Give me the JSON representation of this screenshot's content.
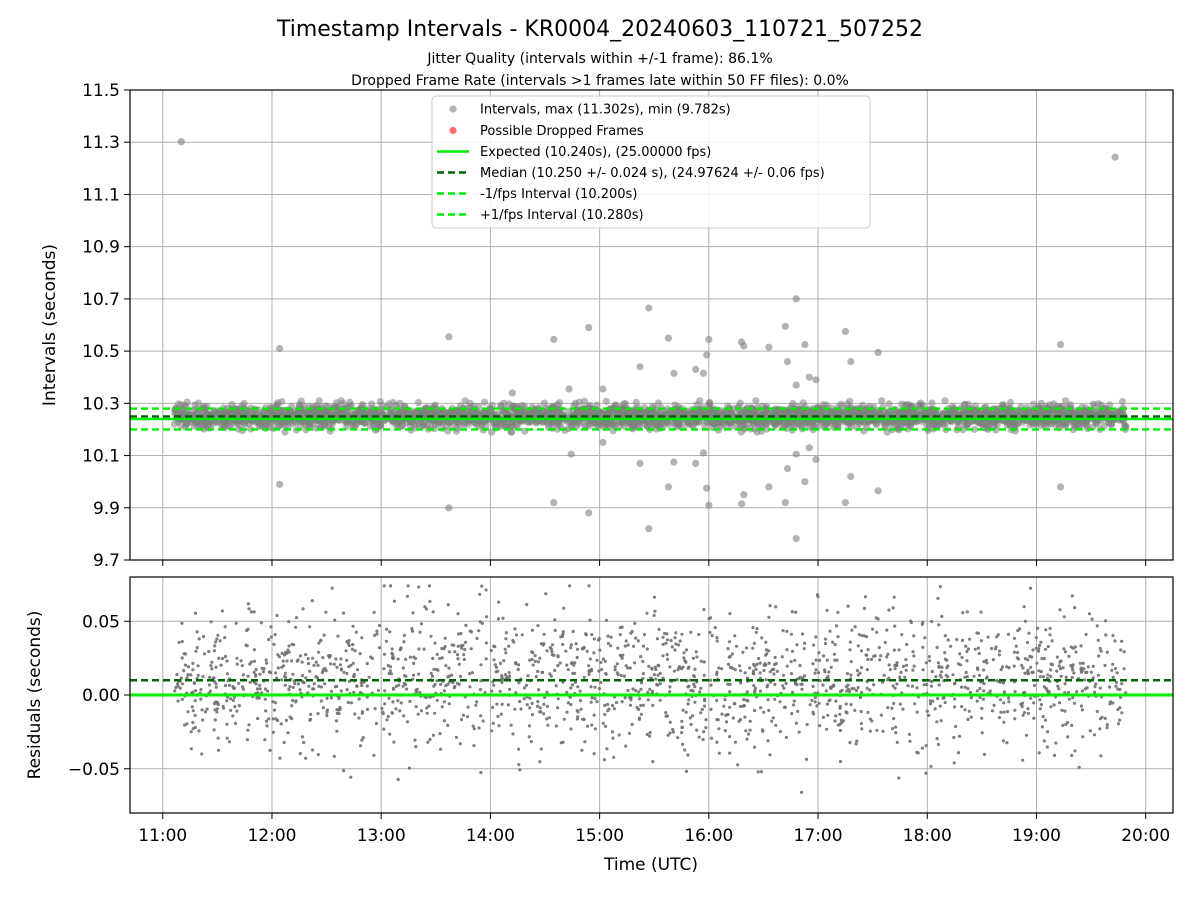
{
  "figure": {
    "title": "Timestamp Intervals - KR0004_20240603_110721_507252",
    "subtitle_1": "Jitter Quality (intervals within +/-1 frame): 86.1%",
    "subtitle_2": "Dropped Frame Rate (intervals >1 frames late within 50 FF files): 0.0%"
  },
  "chart_data": [
    {
      "type": "scatter",
      "panel": "intervals",
      "ylabel": "Intervals (seconds)",
      "xlabel": "",
      "xlim_hours": [
        10.7,
        20.25
      ],
      "ylim": [
        9.7,
        11.5
      ],
      "yticks": [
        9.7,
        9.9,
        10.1,
        10.3,
        10.5,
        10.7,
        10.9,
        11.1,
        11.3,
        11.5
      ],
      "ytick_labels": [
        "9.7",
        "9.9",
        "10.1",
        "10.3",
        "10.5",
        "10.7",
        "10.9",
        "11.1",
        "11.3",
        "11.5"
      ],
      "xticks_hours": [
        11,
        12,
        13,
        14,
        15,
        16,
        17,
        18,
        19,
        20
      ],
      "grid": true,
      "legend_position": "upper center",
      "series": [
        {
          "name": "Intervals, max (11.302s), min (9.782s)",
          "color": "#808080",
          "dense_band": {
            "x_range_hours": [
              11.1,
              19.82
            ],
            "y_range": [
              10.19,
              10.31
            ],
            "approx_points": 3100
          },
          "outliers": [
            {
              "x": 11.17,
              "y": 11.302
            },
            {
              "x": 12.07,
              "y": 10.51
            },
            {
              "x": 12.07,
              "y": 9.99
            },
            {
              "x": 13.62,
              "y": 10.555
            },
            {
              "x": 13.62,
              "y": 9.9
            },
            {
              "x": 14.2,
              "y": 10.34
            },
            {
              "x": 14.58,
              "y": 10.545
            },
            {
              "x": 14.58,
              "y": 9.92
            },
            {
              "x": 14.72,
              "y": 10.355
            },
            {
              "x": 14.74,
              "y": 10.105
            },
            {
              "x": 14.9,
              "y": 10.59
            },
            {
              "x": 14.9,
              "y": 9.88
            },
            {
              "x": 15.03,
              "y": 10.355
            },
            {
              "x": 15.03,
              "y": 10.15
            },
            {
              "x": 15.37,
              "y": 10.44
            },
            {
              "x": 15.37,
              "y": 10.07
            },
            {
              "x": 15.45,
              "y": 10.665
            },
            {
              "x": 15.45,
              "y": 9.82
            },
            {
              "x": 15.63,
              "y": 10.55
            },
            {
              "x": 15.63,
              "y": 9.98
            },
            {
              "x": 15.68,
              "y": 10.415
            },
            {
              "x": 15.68,
              "y": 10.075
            },
            {
              "x": 15.88,
              "y": 10.43
            },
            {
              "x": 15.88,
              "y": 10.07
            },
            {
              "x": 15.95,
              "y": 10.415
            },
            {
              "x": 15.95,
              "y": 10.11
            },
            {
              "x": 15.98,
              "y": 10.485
            },
            {
              "x": 15.98,
              "y": 9.975
            },
            {
              "x": 16.0,
              "y": 10.545
            },
            {
              "x": 16.0,
              "y": 9.91
            },
            {
              "x": 16.3,
              "y": 10.535
            },
            {
              "x": 16.3,
              "y": 9.915
            },
            {
              "x": 16.32,
              "y": 10.52
            },
            {
              "x": 16.32,
              "y": 9.95
            },
            {
              "x": 16.55,
              "y": 10.515
            },
            {
              "x": 16.55,
              "y": 9.98
            },
            {
              "x": 16.7,
              "y": 10.595
            },
            {
              "x": 16.7,
              "y": 9.92
            },
            {
              "x": 16.72,
              "y": 10.46
            },
            {
              "x": 16.72,
              "y": 10.05
            },
            {
              "x": 16.8,
              "y": 10.7
            },
            {
              "x": 16.8,
              "y": 9.782
            },
            {
              "x": 16.8,
              "y": 10.37
            },
            {
              "x": 16.8,
              "y": 10.105
            },
            {
              "x": 16.88,
              "y": 10.525
            },
            {
              "x": 16.88,
              "y": 10.0
            },
            {
              "x": 16.92,
              "y": 10.4
            },
            {
              "x": 16.92,
              "y": 10.13
            },
            {
              "x": 16.98,
              "y": 10.39
            },
            {
              "x": 16.98,
              "y": 10.085
            },
            {
              "x": 17.25,
              "y": 10.575
            },
            {
              "x": 17.25,
              "y": 9.92
            },
            {
              "x": 17.3,
              "y": 10.46
            },
            {
              "x": 17.3,
              "y": 10.02
            },
            {
              "x": 17.55,
              "y": 10.495
            },
            {
              "x": 17.55,
              "y": 9.965
            },
            {
              "x": 19.22,
              "y": 10.525
            },
            {
              "x": 19.22,
              "y": 9.98
            },
            {
              "x": 19.72,
              "y": 11.243
            }
          ]
        },
        {
          "name": "Possible Dropped Frames",
          "color": "#ff5555",
          "values": []
        }
      ],
      "reference_lines": [
        {
          "name": "Expected (10.240s), (25.00000 fps)",
          "y": 10.24,
          "color": "#00ee00",
          "style": "solid"
        },
        {
          "name": "Median (10.250 +/- 0.024 s), (24.97624 +/- 0.06 fps)",
          "y": 10.25,
          "color": "#006400",
          "style": "dashed"
        },
        {
          "name": "-1/fps Interval (10.200s)",
          "y": 10.2,
          "color": "#00ee00",
          "style": "dashed"
        },
        {
          "name": "+1/fps Interval (10.280s)",
          "y": 10.28,
          "color": "#00ee00",
          "style": "dashed"
        }
      ]
    },
    {
      "type": "scatter",
      "panel": "residuals",
      "ylabel": "Residuals (seconds)",
      "xlabel": "Time (UTC)",
      "xlim_hours": [
        10.7,
        20.25
      ],
      "ylim": [
        -0.08,
        0.08
      ],
      "yticks": [
        -0.05,
        0.0,
        0.05
      ],
      "ytick_labels": [
        "−0.05",
        "0.00",
        "0.05"
      ],
      "xticks_hours": [
        11,
        12,
        13,
        14,
        15,
        16,
        17,
        18,
        19,
        20
      ],
      "xtick_labels": [
        "11:00",
        "12:00",
        "13:00",
        "14:00",
        "15:00",
        "16:00",
        "17:00",
        "18:00",
        "19:00",
        "20:00"
      ],
      "grid": true,
      "series": [
        {
          "name": "Residuals",
          "color": "#707070",
          "dense_band": {
            "x_range_hours": [
              11.1,
              19.82
            ],
            "y_range": [
              -0.066,
              0.074
            ],
            "approx_points": 1900
          }
        }
      ],
      "reference_lines": [
        {
          "name": "Expected",
          "y": 0.0,
          "color": "#00ee00",
          "style": "solid"
        },
        {
          "name": "Median",
          "y": 0.01,
          "color": "#006400",
          "style": "dashed"
        }
      ]
    }
  ]
}
